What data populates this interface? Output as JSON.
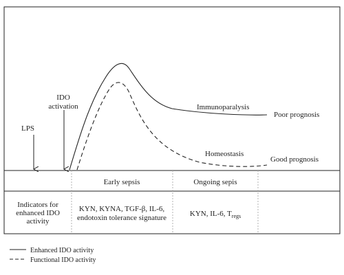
{
  "labels": {
    "lps": "LPS",
    "ido_line1": "IDO",
    "ido_line2": "activation",
    "immunoparalysis": "Immunoparalysis",
    "poor_prognosis": "Poor prognosis",
    "homeostasis": "Homeostasis",
    "good_prognosis": "Good prognosis"
  },
  "phases": {
    "early": "Early sepsis",
    "ongoing": "Ongoing sepis"
  },
  "indicators": {
    "header_line1": "Indicators for",
    "header_line2": "enhanced IDO",
    "header_line3": "activity",
    "early_line1": "KYN, KYNA, TGF-β, IL-6,",
    "early_line2": "endotoxin tolerance signature",
    "ongoing_main": "KYN, IL-6, T",
    "ongoing_sub": "regs"
  },
  "legend": {
    "solid": "Enhanced IDO activity",
    "dashed": "Functional IDO activity"
  },
  "colors": {
    "ink": "#222222",
    "divider": "#b0b0b0"
  }
}
